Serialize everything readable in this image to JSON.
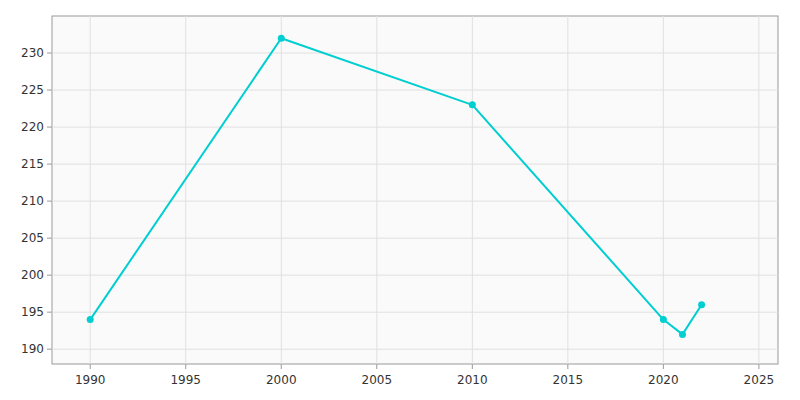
{
  "chart_data": {
    "type": "line",
    "x": [
      1990,
      2000,
      2010,
      2020,
      2021,
      2022
    ],
    "values": [
      194,
      232,
      223,
      194,
      192,
      196
    ],
    "color": "#00CED1",
    "marker": "circle",
    "xlim": [
      1988,
      2026
    ],
    "xticks": [
      1990,
      1995,
      2000,
      2005,
      2010,
      2015,
      2020,
      2025
    ],
    "ylim": [
      188,
      235
    ],
    "yticks": [
      190,
      195,
      200,
      205,
      210,
      215,
      220,
      225,
      230
    ],
    "grid": true
  }
}
